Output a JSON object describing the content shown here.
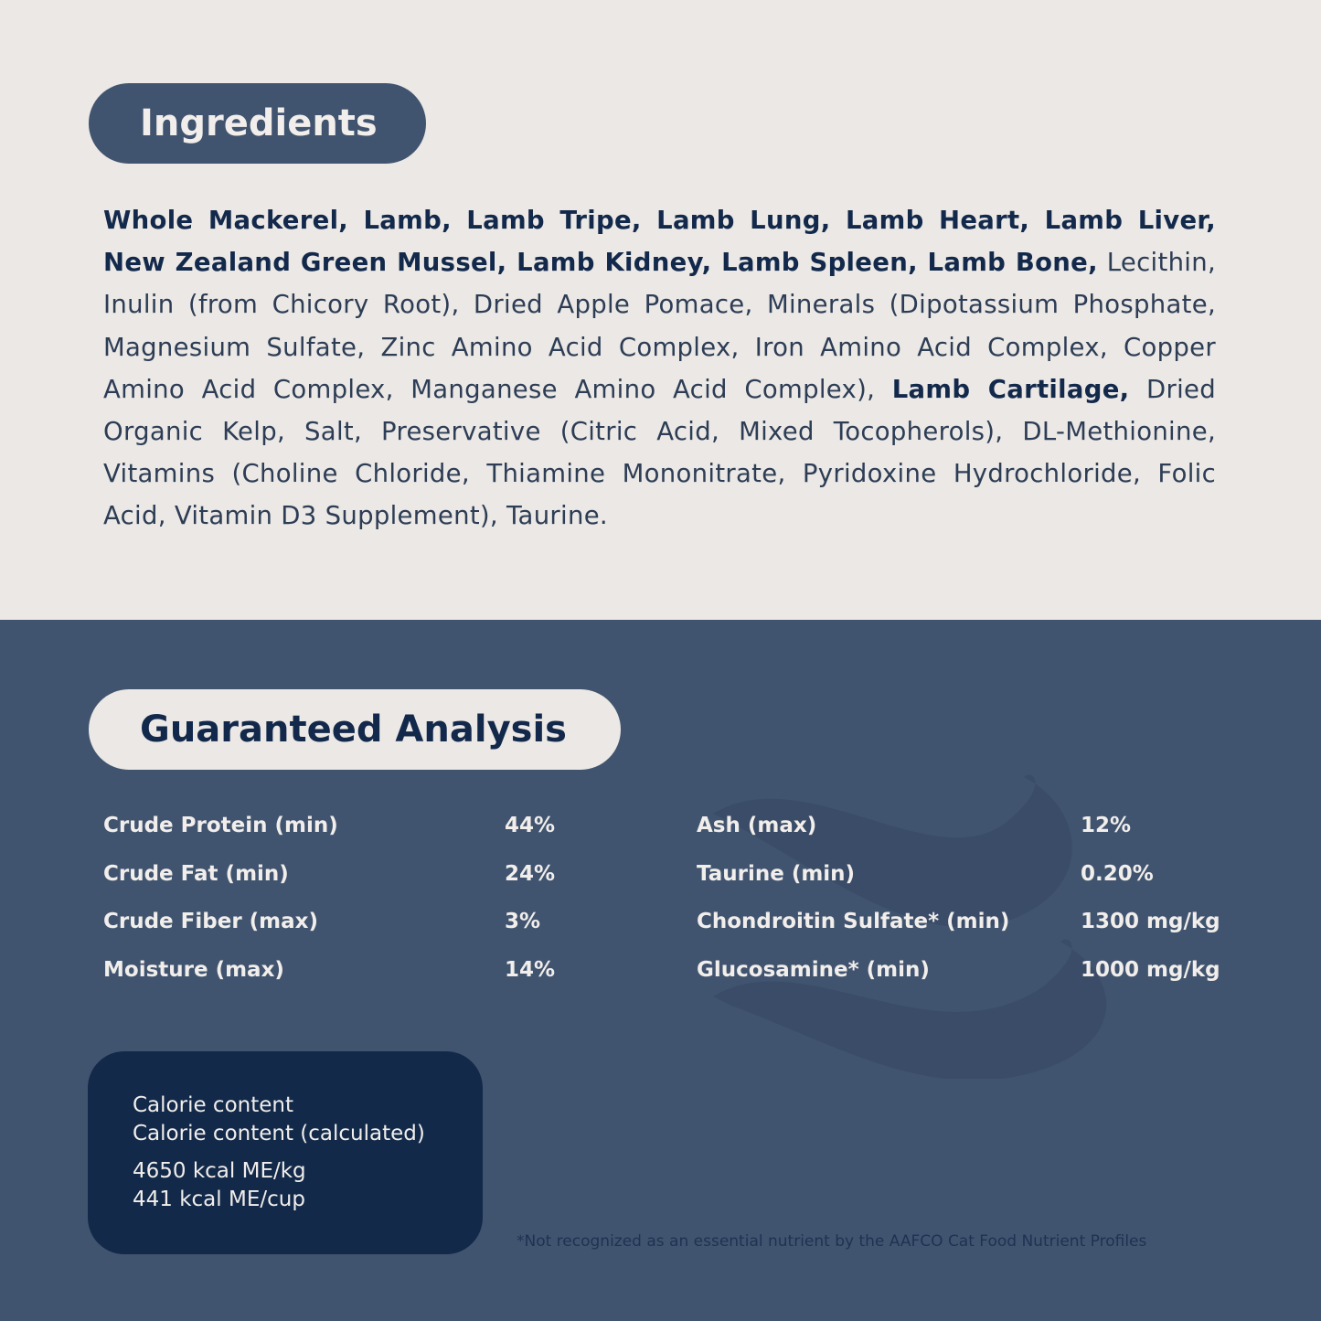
{
  "ingredients": {
    "title": "Ingredients",
    "segments": [
      {
        "text": "Whole Mackerel, Lamb, Lamb Tripe, Lamb Lung, Lamb Heart, Lamb Liver, New Zealand Green Mussel, Lamb Kidney, Lamb Spleen, Lamb Bone,",
        "bold": true
      },
      {
        "text": " Lecithin, Inulin (from Chicory Root), Dried Apple Pomace, Minerals (Dipotassium Phosphate, Magnesium Sulfate, Zinc Amino Acid Complex, Iron Amino Acid Complex, Copper Amino Acid Complex, Manganese Amino Acid Complex), ",
        "bold": false
      },
      {
        "text": "Lamb Cartilage,",
        "bold": true
      },
      {
        "text": " Dried Organic Kelp, Salt, Preservative (Citric Acid, Mixed Tocopherols), DL-Methionine, Vitamins (Choline Chloride, Thiamine Mononitrate, Pyridoxine Hydrochloride, Folic Acid, Vitamin D3 Supplement), Taurine.",
        "bold": false
      }
    ]
  },
  "analysis": {
    "title": "Guaranteed Analysis",
    "left": [
      {
        "label": "Crude Protein (min)",
        "value": "44%"
      },
      {
        "label": "Crude Fat (min)",
        "value": "24%"
      },
      {
        "label": "Crude Fiber (max)",
        "value": "3%"
      },
      {
        "label": "Moisture (max)",
        "value": "14%"
      }
    ],
    "right": [
      {
        "label": "Ash (max)",
        "value": "12%"
      },
      {
        "label": "Taurine (min)",
        "value": "0.20%"
      },
      {
        "label": "Chondroitin Sulfate* (min)",
        "value": "1300 mg/kg"
      },
      {
        "label": "Glucosamine* (min)",
        "value": "1000 mg/kg"
      }
    ]
  },
  "calorie": {
    "label1": "Calorie content",
    "label2": "Calorie content (calculated)",
    "value1": "4650 kcal ME/kg",
    "value2": "441 kcal ME/cup"
  },
  "footnote": "*Not recognized as an essential nutrient by the AAFCO Cat Food Nutrient Profiles",
  "colors": {
    "light_bg": "#ebe8e5",
    "blue_bg": "#41546f",
    "navy": "#13294b",
    "calorie_box": "#12294a"
  }
}
